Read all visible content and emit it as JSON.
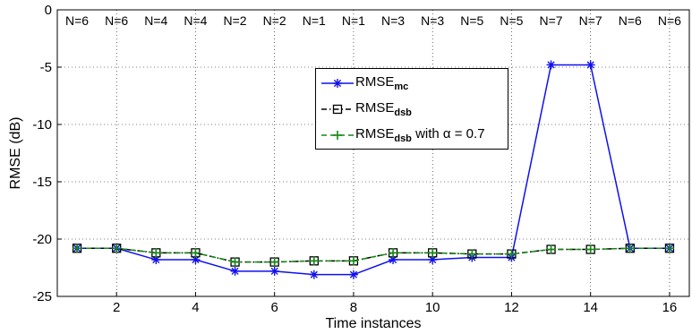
{
  "chart_data": {
    "type": "line",
    "title": "",
    "xlabel": "Time instances",
    "ylabel": "RMSE (dB)",
    "xlim": [
      0.5,
      16.5
    ],
    "ylim": [
      -25,
      0
    ],
    "x": [
      1,
      2,
      3,
      4,
      5,
      6,
      7,
      8,
      9,
      10,
      11,
      12,
      13,
      14,
      15,
      16
    ],
    "xticks": [
      2,
      4,
      6,
      8,
      10,
      12,
      14,
      16
    ],
    "yticks": [
      0,
      -5,
      -10,
      -15,
      -20,
      -25
    ],
    "grid": true,
    "legend_position": "top-center",
    "top_labels": [
      "N=6",
      "N=6",
      "N=4",
      "N=4",
      "N=2",
      "N=2",
      "N=1",
      "N=1",
      "N=3",
      "N=3",
      "N=5",
      "N=5",
      "N=7",
      "N=7",
      "N=6",
      "N=6"
    ],
    "series": [
      {
        "name": "RMSE_mc",
        "legend_main": "RMSE",
        "legend_sub": "mc",
        "legend_suffix": "",
        "color": "#1010ee",
        "marker": "asterisk",
        "linestyle": "solid",
        "values": [
          -20.8,
          -20.8,
          -21.8,
          -21.8,
          -22.8,
          -22.8,
          -23.1,
          -23.1,
          -21.8,
          -21.8,
          -21.6,
          -21.6,
          -4.8,
          -4.8,
          -20.8,
          -20.8
        ]
      },
      {
        "name": "RMSE_dsb",
        "legend_main": "RMSE",
        "legend_sub": "dsb",
        "legend_suffix": "",
        "color": "#000000",
        "marker": "square",
        "linestyle": "dashdot",
        "values": [
          -20.8,
          -20.8,
          -21.2,
          -21.2,
          -22.0,
          -22.0,
          -21.9,
          -21.9,
          -21.2,
          -21.2,
          -21.3,
          -21.3,
          -20.9,
          -20.9,
          -20.8,
          -20.8
        ]
      },
      {
        "name": "RMSE_dsb with α = 0.7",
        "legend_main": "RMSE",
        "legend_sub": "dsb",
        "legend_suffix": " with α = 0.7",
        "color": "#118811",
        "marker": "plus",
        "linestyle": "dashed",
        "values": [
          -20.8,
          -20.8,
          -21.2,
          -21.2,
          -22.0,
          -22.0,
          -21.9,
          -21.9,
          -21.2,
          -21.2,
          -21.3,
          -21.3,
          -20.9,
          -20.9,
          -20.8,
          -20.8
        ]
      }
    ]
  }
}
